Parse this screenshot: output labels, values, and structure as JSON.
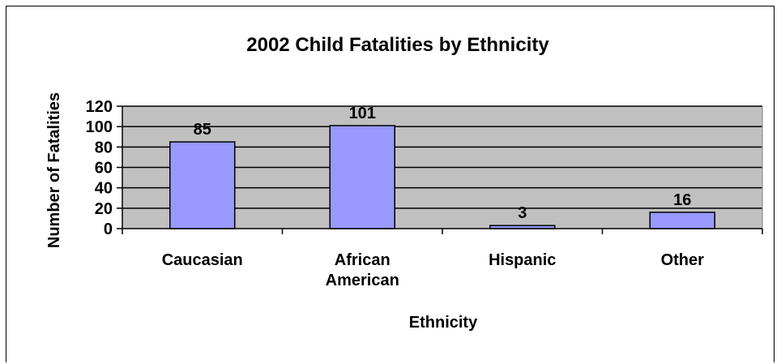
{
  "chart_data": {
    "type": "bar",
    "title": "2002 Child Fatalities by Ethnicity",
    "xlabel": "Ethnicity",
    "ylabel": "Number of Fatalities",
    "categories": [
      "Caucasian",
      "African American",
      "Hispanic",
      "Other"
    ],
    "category_lines": [
      [
        "Caucasian"
      ],
      [
        "African",
        "American"
      ],
      [
        "Hispanic"
      ],
      [
        "Other"
      ]
    ],
    "values": [
      85,
      101,
      3,
      16
    ],
    "ylim": [
      0,
      120
    ],
    "yticks": [
      0,
      20,
      40,
      60,
      80,
      100,
      120
    ],
    "grid": true,
    "legend": "none",
    "colors": {
      "bar_fill": "#9999FF",
      "plot_background": "#C0C0C0",
      "gridline": "#000000"
    }
  }
}
